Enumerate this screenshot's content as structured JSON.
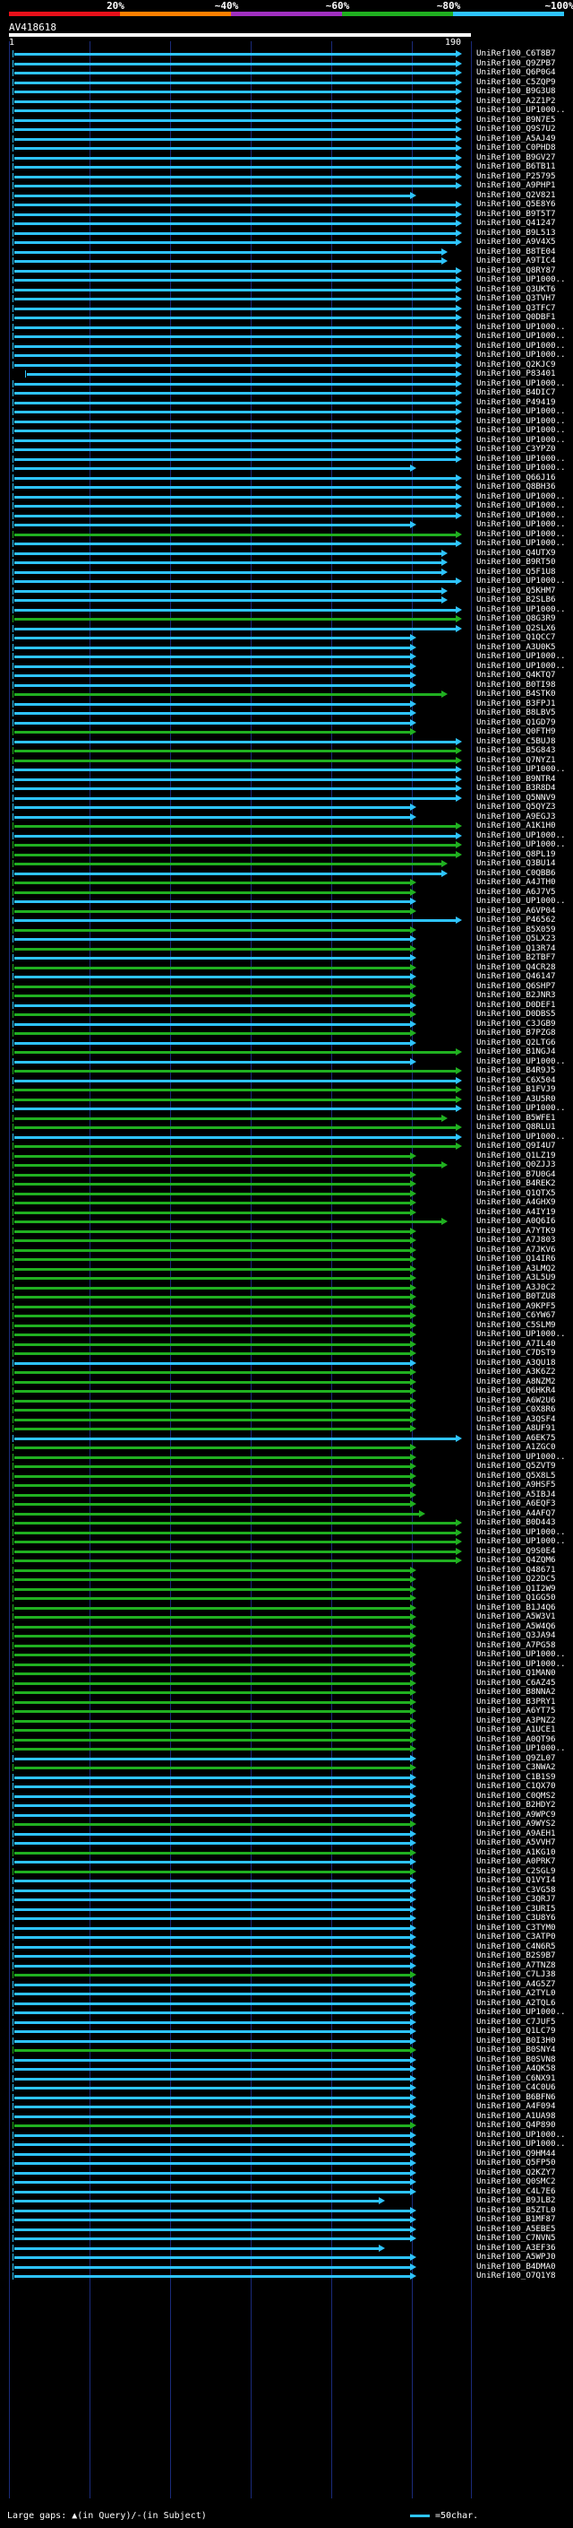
{
  "scale": {
    "labels": [
      "20%",
      "~40%",
      "~60%",
      "~80%",
      "~100%"
    ],
    "colors": [
      "#e8101a",
      "#ff8000",
      "#a030c0",
      "#20b020",
      "#2ec4ff"
    ]
  },
  "query": {
    "name": "AV418618",
    "start": "1",
    "end": "190"
  },
  "footer": {
    "legend": "Large gaps: ▲(in Query)/-(in Subject)",
    "char_scale": "=50char."
  },
  "hits": [
    {
      "label": "UniRef100_C6T8B7",
      "color": "#2ec4ff"
    },
    {
      "label": "UniRef100_Q9ZPB7",
      "color": "#2ec4ff"
    },
    {
      "label": "UniRef100_Q6P0G4",
      "color": "#2ec4ff"
    },
    {
      "label": "UniRef100_C5ZQP9",
      "color": "#2ec4ff"
    },
    {
      "label": "UniRef100_B9G3U8",
      "color": "#2ec4ff"
    },
    {
      "label": "UniRef100_A2Z1P2",
      "color": "#2ec4ff"
    },
    {
      "label": "UniRef100_UP1000..",
      "color": "#2ec4ff"
    },
    {
      "label": "UniRef100_B9N7E5",
      "color": "#2ec4ff"
    },
    {
      "label": "UniRef100_Q9S7U2",
      "color": "#2ec4ff"
    },
    {
      "label": "UniRef100_A5AJ49",
      "color": "#2ec4ff"
    },
    {
      "label": "UniRef100_C0PHD8",
      "color": "#2ec4ff"
    },
    {
      "label": "UniRef100_B9GV27",
      "color": "#2ec4ff"
    },
    {
      "label": "UniRef100_B6TB11",
      "color": "#2ec4ff"
    },
    {
      "label": "UniRef100_P25795",
      "color": "#2ec4ff"
    },
    {
      "label": "UniRef100_A9PHP1",
      "color": "#2ec4ff"
    },
    {
      "label": "UniRef100_Q2V821",
      "color": "#2ec4ff"
    },
    {
      "label": "UniRef100_Q5E8Y6",
      "color": "#2ec4ff"
    },
    {
      "label": "UniRef100_B9T5T7",
      "color": "#2ec4ff"
    },
    {
      "label": "UniRef100_Q41247",
      "color": "#2ec4ff"
    },
    {
      "label": "UniRef100_B9L513",
      "color": "#2ec4ff"
    },
    {
      "label": "UniRef100_A9V4X5",
      "color": "#2ec4ff"
    },
    {
      "label": "UniRef100_B8TE04",
      "color": "#2ec4ff"
    },
    {
      "label": "UniRef100_A9TIC4",
      "color": "#2ec4ff"
    },
    {
      "label": "UniRef100_Q8RY87",
      "color": "#2ec4ff"
    },
    {
      "label": "UniRef100_UP1000..",
      "color": "#2ec4ff"
    },
    {
      "label": "UniRef100_Q3UKT6",
      "color": "#2ec4ff"
    },
    {
      "label": "UniRef100_Q3TVH7",
      "color": "#2ec4ff"
    },
    {
      "label": "UniRef100_Q3TFC7",
      "color": "#2ec4ff"
    },
    {
      "label": "UniRef100_Q0DBF1",
      "color": "#2ec4ff"
    },
    {
      "label": "UniRef100_UP1000..",
      "color": "#2ec4ff"
    },
    {
      "label": "UniRef100_UP1000..",
      "color": "#2ec4ff"
    },
    {
      "label": "UniRef100_UP1000..",
      "color": "#2ec4ff"
    },
    {
      "label": "UniRef100_UP1000..",
      "color": "#2ec4ff"
    },
    {
      "label": "UniRef100_Q2KJC9",
      "color": "#2ec4ff"
    },
    {
      "label": "UniRef100_P83401",
      "color": "#2ec4ff"
    },
    {
      "label": "UniRef100_UP1000..",
      "color": "#2ec4ff"
    },
    {
      "label": "UniRef100_B4DIC7",
      "color": "#2ec4ff"
    },
    {
      "label": "UniRef100_P49419",
      "color": "#2ec4ff"
    },
    {
      "label": "UniRef100_UP1000..",
      "color": "#2ec4ff"
    },
    {
      "label": "UniRef100_UP1000..",
      "color": "#2ec4ff"
    },
    {
      "label": "UniRef100_UP1000..",
      "color": "#2ec4ff"
    },
    {
      "label": "UniRef100_UP1000..",
      "color": "#2ec4ff"
    },
    {
      "label": "UniRef100_C3YPZ0",
      "color": "#2ec4ff"
    },
    {
      "label": "UniRef100_UP1000..",
      "color": "#2ec4ff"
    },
    {
      "label": "UniRef100_UP1000..",
      "color": "#2ec4ff"
    },
    {
      "label": "UniRef100_Q66J16",
      "color": "#2ec4ff"
    },
    {
      "label": "UniRef100_Q8BH36",
      "color": "#2ec4ff"
    },
    {
      "label": "UniRef100_UP1000..",
      "color": "#2ec4ff"
    },
    {
      "label": "UniRef100_UP1000..",
      "color": "#2ec4ff"
    },
    {
      "label": "UniRef100_UP1000..",
      "color": "#2ec4ff"
    },
    {
      "label": "UniRef100_UP1000..",
      "color": "#2ec4ff"
    },
    {
      "label": "UniRef100_UP1000..",
      "color": "#20b020"
    },
    {
      "label": "UniRef100_UP1000..",
      "color": "#2ec4ff"
    },
    {
      "label": "UniRef100_Q4UTX9",
      "color": "#2ec4ff"
    },
    {
      "label": "UniRef100_B9RT50",
      "color": "#2ec4ff"
    },
    {
      "label": "UniRef100_Q5F1U8",
      "color": "#2ec4ff"
    },
    {
      "label": "UniRef100_UP1000..",
      "color": "#2ec4ff"
    },
    {
      "label": "UniRef100_Q5KHM7",
      "color": "#2ec4ff"
    },
    {
      "label": "UniRef100_B2SLB6",
      "color": "#2ec4ff"
    },
    {
      "label": "UniRef100_UP1000..",
      "color": "#2ec4ff"
    },
    {
      "label": "UniRef100_Q8G3R9",
      "color": "#20b020"
    },
    {
      "label": "UniRef100_Q2SLX6",
      "color": "#2ec4ff"
    },
    {
      "label": "UniRef100_Q1QCC7",
      "color": "#2ec4ff"
    },
    {
      "label": "UniRef100_A3U0K5",
      "color": "#2ec4ff"
    },
    {
      "label": "UniRef100_UP1000..",
      "color": "#2ec4ff"
    },
    {
      "label": "UniRef100_UP1000..",
      "color": "#2ec4ff"
    },
    {
      "label": "UniRef100_Q4KTQ7",
      "color": "#2ec4ff"
    },
    {
      "label": "UniRef100_B0TI98",
      "color": "#2ec4ff"
    },
    {
      "label": "UniRef100_B4STK0",
      "color": "#20b020"
    },
    {
      "label": "UniRef100_B3FPJ1",
      "color": "#2ec4ff"
    },
    {
      "label": "UniRef100_B8LBV5",
      "color": "#2ec4ff"
    },
    {
      "label": "UniRef100_Q1GD79",
      "color": "#2ec4ff"
    },
    {
      "label": "UniRef100_Q0FTH9",
      "color": "#20b020"
    },
    {
      "label": "UniRef100_C5BUJ8",
      "color": "#2ec4ff"
    },
    {
      "label": "UniRef100_B5G843",
      "color": "#20b020"
    },
    {
      "label": "UniRef100_Q7NYZ1",
      "color": "#20b020"
    },
    {
      "label": "UniRef100_UP1000..",
      "color": "#2ec4ff"
    },
    {
      "label": "UniRef100_B9NTR4",
      "color": "#2ec4ff"
    },
    {
      "label": "UniRef100_B3R8D4",
      "color": "#2ec4ff"
    },
    {
      "label": "UniRef100_Q5NNV9",
      "color": "#2ec4ff"
    },
    {
      "label": "UniRef100_Q5QYZ3",
      "color": "#2ec4ff"
    },
    {
      "label": "UniRef100_A9EGJ3",
      "color": "#2ec4ff"
    },
    {
      "label": "UniRef100_A1K1H0",
      "color": "#20b020"
    },
    {
      "label": "UniRef100_UP1000..",
      "color": "#2ec4ff"
    },
    {
      "label": "UniRef100_UP1000..",
      "color": "#20b020"
    },
    {
      "label": "UniRef100_Q8PL19",
      "color": "#20b020"
    },
    {
      "label": "UniRef100_Q3BU14",
      "color": "#20b020"
    },
    {
      "label": "UniRef100_C0QBB6",
      "color": "#2ec4ff"
    },
    {
      "label": "UniRef100_A4JTH0",
      "color": "#20b020"
    },
    {
      "label": "UniRef100_A6J7V5",
      "color": "#20b020"
    },
    {
      "label": "UniRef100_UP1000..",
      "color": "#2ec4ff"
    },
    {
      "label": "UniRef100_A6VP04",
      "color": "#20b020"
    },
    {
      "label": "UniRef100_P46562",
      "color": "#2ec4ff"
    },
    {
      "label": "UniRef100_B5X059",
      "color": "#20b020"
    },
    {
      "label": "UniRef100_Q5LX23",
      "color": "#2ec4ff"
    },
    {
      "label": "UniRef100_Q13R74",
      "color": "#20b020"
    },
    {
      "label": "UniRef100_B2TBF7",
      "color": "#2ec4ff"
    },
    {
      "label": "UniRef100_Q4CR28",
      "color": "#20b020"
    },
    {
      "label": "UniRef100_Q46147",
      "color": "#2ec4ff"
    },
    {
      "label": "UniRef100_Q6SHP7",
      "color": "#20b020"
    },
    {
      "label": "UniRef100_B2JNR3",
      "color": "#20b020"
    },
    {
      "label": "UniRef100_D0DEF1",
      "color": "#2ec4ff"
    },
    {
      "label": "UniRef100_D0DBS5",
      "color": "#20b020"
    },
    {
      "label": "UniRef100_C3JGB9",
      "color": "#2ec4ff"
    },
    {
      "label": "UniRef100_B7PZG8",
      "color": "#20b020"
    },
    {
      "label": "UniRef100_Q2LTG6",
      "color": "#2ec4ff"
    },
    {
      "label": "UniRef100_B1NGJ4",
      "color": "#20b020"
    },
    {
      "label": "UniRef100_UP1000..",
      "color": "#2ec4ff"
    },
    {
      "label": "UniRef100_B4R9J5",
      "color": "#20b020"
    },
    {
      "label": "UniRef100_C6X504",
      "color": "#2ec4ff"
    },
    {
      "label": "UniRef100_B1FVJ9",
      "color": "#20b020"
    },
    {
      "label": "UniRef100_A3U5R0",
      "color": "#20b020"
    },
    {
      "label": "UniRef100_UP1000..",
      "color": "#2ec4ff"
    },
    {
      "label": "UniRef100_B5WFE1",
      "color": "#20b020"
    },
    {
      "label": "UniRef100_Q8RLU1",
      "color": "#20b020"
    },
    {
      "label": "UniRef100_UP1000..",
      "color": "#2ec4ff"
    },
    {
      "label": "UniRef100_Q9I4U7",
      "color": "#20b020"
    },
    {
      "label": "UniRef100_Q1LZ19",
      "color": "#20b020"
    },
    {
      "label": "UniRef100_Q0ZJJ3",
      "color": "#20b020"
    },
    {
      "label": "UniRef100_B7U0G4",
      "color": "#20b020"
    },
    {
      "label": "UniRef100_B4REK2",
      "color": "#20b020"
    },
    {
      "label": "UniRef100_Q1QTX5",
      "color": "#20b020"
    },
    {
      "label": "UniRef100_A4GHX9",
      "color": "#20b020"
    },
    {
      "label": "UniRef100_A4IY19",
      "color": "#20b020"
    },
    {
      "label": "UniRef100_A0Q6I6",
      "color": "#20b020"
    },
    {
      "label": "UniRef100_A7YTK9",
      "color": "#20b020"
    },
    {
      "label": "UniRef100_A7J803",
      "color": "#20b020"
    },
    {
      "label": "UniRef100_A7JKV6",
      "color": "#20b020"
    },
    {
      "label": "UniRef100_Q14IR6",
      "color": "#20b020"
    },
    {
      "label": "UniRef100_A3LMQ2",
      "color": "#20b020"
    },
    {
      "label": "UniRef100_A3L5U9",
      "color": "#20b020"
    },
    {
      "label": "UniRef100_A3J0C2",
      "color": "#20b020"
    },
    {
      "label": "UniRef100_B0TZU8",
      "color": "#20b020"
    },
    {
      "label": "UniRef100_A9KPF5",
      "color": "#20b020"
    },
    {
      "label": "UniRef100_C6YW67",
      "color": "#20b020"
    },
    {
      "label": "UniRef100_C5SLM9",
      "color": "#20b020"
    },
    {
      "label": "UniRef100_UP1000..",
      "color": "#20b020"
    },
    {
      "label": "UniRef100_A7IL40",
      "color": "#20b020"
    },
    {
      "label": "UniRef100_C7DST9",
      "color": "#20b020"
    },
    {
      "label": "UniRef100_A3QU18",
      "color": "#2ec4ff"
    },
    {
      "label": "UniRef100_A3K6Z2",
      "color": "#20b020"
    },
    {
      "label": "UniRef100_A8NZM2",
      "color": "#20b020"
    },
    {
      "label": "UniRef100_Q6HKR4",
      "color": "#20b020"
    },
    {
      "label": "UniRef100_A6W2U6",
      "color": "#20b020"
    },
    {
      "label": "UniRef100_C0X8R6",
      "color": "#20b020"
    },
    {
      "label": "UniRef100_A3QSF4",
      "color": "#20b020"
    },
    {
      "label": "UniRef100_A8UF91",
      "color": "#20b020"
    },
    {
      "label": "UniRef100_A6EK75",
      "color": "#2ec4ff"
    },
    {
      "label": "UniRef100_A1ZGC0",
      "color": "#20b020"
    },
    {
      "label": "UniRef100_UP1000..",
      "color": "#20b020"
    },
    {
      "label": "UniRef100_Q5ZVT9",
      "color": "#20b020"
    },
    {
      "label": "UniRef100_Q5X8L5",
      "color": "#20b020"
    },
    {
      "label": "UniRef100_A9HSF5",
      "color": "#20b020"
    },
    {
      "label": "UniRef100_A5IBJ4",
      "color": "#20b020"
    },
    {
      "label": "UniRef100_A6EQF3",
      "color": "#20b020"
    },
    {
      "label": "UniRef100_A4AFQ7",
      "color": "#20b020"
    },
    {
      "label": "UniRef100_B0D443",
      "color": "#20b020"
    },
    {
      "label": "UniRef100_UP1000..",
      "color": "#20b020"
    },
    {
      "label": "UniRef100_UP1000..",
      "color": "#20b020"
    },
    {
      "label": "UniRef100_Q9S0E4",
      "color": "#20b020"
    },
    {
      "label": "UniRef100_Q4ZQM6",
      "color": "#20b020"
    },
    {
      "label": "UniRef100_Q48671",
      "color": "#20b020"
    },
    {
      "label": "UniRef100_Q22DC5",
      "color": "#20b020"
    },
    {
      "label": "UniRef100_Q1I2W9",
      "color": "#20b020"
    },
    {
      "label": "UniRef100_Q1GG50",
      "color": "#20b020"
    },
    {
      "label": "UniRef100_B1J4Q6",
      "color": "#20b020"
    },
    {
      "label": "UniRef100_A5W3V1",
      "color": "#20b020"
    },
    {
      "label": "UniRef100_A5W4Q6",
      "color": "#20b020"
    },
    {
      "label": "UniRef100_Q3JA94",
      "color": "#20b020"
    },
    {
      "label": "UniRef100_A7PG58",
      "color": "#20b020"
    },
    {
      "label": "UniRef100_UP1000..",
      "color": "#20b020"
    },
    {
      "label": "UniRef100_UP1000..",
      "color": "#20b020"
    },
    {
      "label": "UniRef100_Q1MAN0",
      "color": "#20b020"
    },
    {
      "label": "UniRef100_C6AZ45",
      "color": "#20b020"
    },
    {
      "label": "UniRef100_B8NNA2",
      "color": "#20b020"
    },
    {
      "label": "UniRef100_B3PRY1",
      "color": "#20b020"
    },
    {
      "label": "UniRef100_A6YT75",
      "color": "#20b020"
    },
    {
      "label": "UniRef100_A3PNZ2",
      "color": "#20b020"
    },
    {
      "label": "UniRef100_A1UCE1",
      "color": "#20b020"
    },
    {
      "label": "UniRef100_A0QT96",
      "color": "#20b020"
    },
    {
      "label": "UniRef100_UP1000..",
      "color": "#20b020"
    },
    {
      "label": "UniRef100_Q9ZL07",
      "color": "#2ec4ff"
    },
    {
      "label": "UniRef100_C3NWA2",
      "color": "#20b020"
    },
    {
      "label": "UniRef100_C1B1S9",
      "color": "#2ec4ff"
    },
    {
      "label": "UniRef100_C1QX70",
      "color": "#2ec4ff"
    },
    {
      "label": "UniRef100_C0QMS2",
      "color": "#2ec4ff"
    },
    {
      "label": "UniRef100_B2HDY2",
      "color": "#2ec4ff"
    },
    {
      "label": "UniRef100_A9WPC9",
      "color": "#2ec4ff"
    },
    {
      "label": "UniRef100_A9WYS2",
      "color": "#20b020"
    },
    {
      "label": "UniRef100_A9AEH1",
      "color": "#2ec4ff"
    },
    {
      "label": "UniRef100_A5VVH7",
      "color": "#2ec4ff"
    },
    {
      "label": "UniRef100_A1KG10",
      "color": "#20b020"
    },
    {
      "label": "UniRef100_A0PRK7",
      "color": "#2ec4ff"
    },
    {
      "label": "UniRef100_C2SGL9",
      "color": "#20b020"
    },
    {
      "label": "UniRef100_Q1VYI4",
      "color": "#2ec4ff"
    },
    {
      "label": "UniRef100_C3VG58",
      "color": "#2ec4ff"
    },
    {
      "label": "UniRef100_C3QRJ7",
      "color": "#2ec4ff"
    },
    {
      "label": "UniRef100_C3URI5",
      "color": "#2ec4ff"
    },
    {
      "label": "UniRef100_C3U8Y6",
      "color": "#2ec4ff"
    },
    {
      "label": "UniRef100_C3TYM0",
      "color": "#2ec4ff"
    },
    {
      "label": "UniRef100_C3ATP0",
      "color": "#2ec4ff"
    },
    {
      "label": "UniRef100_C4N6R5",
      "color": "#2ec4ff"
    },
    {
      "label": "UniRef100_B2S9B7",
      "color": "#2ec4ff"
    },
    {
      "label": "UniRef100_A7TNZ8",
      "color": "#2ec4ff"
    },
    {
      "label": "UniRef100_C7LJ38",
      "color": "#20b020"
    },
    {
      "label": "UniRef100_A4G5Z7",
      "color": "#2ec4ff"
    },
    {
      "label": "UniRef100_A2TYL0",
      "color": "#2ec4ff"
    },
    {
      "label": "UniRef100_A2TQL6",
      "color": "#2ec4ff"
    },
    {
      "label": "UniRef100_UP1000..",
      "color": "#2ec4ff"
    },
    {
      "label": "UniRef100_C7JUF5",
      "color": "#2ec4ff"
    },
    {
      "label": "UniRef100_Q1LC79",
      "color": "#2ec4ff"
    },
    {
      "label": "UniRef100_B0I3H0",
      "color": "#2ec4ff"
    },
    {
      "label": "UniRef100_B0SNY4",
      "color": "#20b020"
    },
    {
      "label": "UniRef100_B0SVN8",
      "color": "#2ec4ff"
    },
    {
      "label": "UniRef100_A4QK58",
      "color": "#2ec4ff"
    },
    {
      "label": "UniRef100_C6NX91",
      "color": "#2ec4ff"
    },
    {
      "label": "UniRef100_C4C0U6",
      "color": "#2ec4ff"
    },
    {
      "label": "UniRef100_B6BFN6",
      "color": "#2ec4ff"
    },
    {
      "label": "UniRef100_A4F094",
      "color": "#2ec4ff"
    },
    {
      "label": "UniRef100_A1UA98",
      "color": "#2ec4ff"
    },
    {
      "label": "UniRef100_Q4P890",
      "color": "#20b020"
    },
    {
      "label": "UniRef100_UP1000..",
      "color": "#2ec4ff"
    },
    {
      "label": "UniRef100_UP1000..",
      "color": "#2ec4ff"
    },
    {
      "label": "UniRef100_Q9HM44",
      "color": "#2ec4ff"
    },
    {
      "label": "UniRef100_Q5FP50",
      "color": "#2ec4ff"
    },
    {
      "label": "UniRef100_Q2KZY7",
      "color": "#2ec4ff"
    },
    {
      "label": "UniRef100_Q0SMC2",
      "color": "#2ec4ff"
    },
    {
      "label": "UniRef100_C4L7E6",
      "color": "#2ec4ff"
    },
    {
      "label": "UniRef100_B9JLB2",
      "color": "#2ec4ff"
    },
    {
      "label": "UniRef100_B5ZTL0",
      "color": "#2ec4ff"
    },
    {
      "label": "UniRef100_B1MF87",
      "color": "#2ec4ff"
    },
    {
      "label": "UniRef100_A5EBE5",
      "color": "#2ec4ff"
    },
    {
      "label": "UniRef100_C7NVN5",
      "color": "#2ec4ff"
    },
    {
      "label": "UniRef100_A3EF36",
      "color": "#2ec4ff"
    },
    {
      "label": "UniRef100_A5WPJ0",
      "color": "#2ec4ff"
    },
    {
      "label": "UniRef100_B4DMA0",
      "color": "#2ec4ff"
    },
    {
      "label": "UniRef100_O7Q1Y8",
      "color": "#2ec4ff"
    }
  ]
}
